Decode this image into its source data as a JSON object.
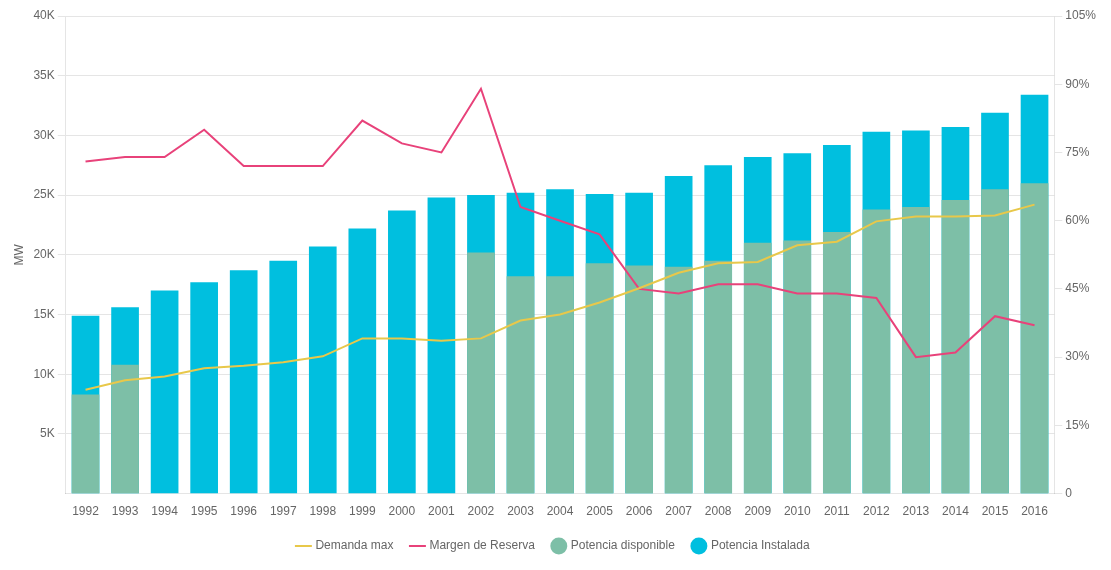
{
  "chart_data": {
    "type": "bar",
    "categories": [
      1992,
      1993,
      1994,
      1995,
      1996,
      1997,
      1998,
      1999,
      2000,
      2001,
      2002,
      2003,
      2004,
      2005,
      2006,
      2007,
      2008,
      2009,
      2010,
      2011,
      2012,
      2013,
      2014,
      2015,
      2016
    ],
    "series": [
      {
        "name": "Potencia Instalada",
        "type": "bar",
        "color": "#00BFDF",
        "marker": "circle",
        "values": [
          14900,
          15600,
          17000,
          17700,
          18700,
          19500,
          20700,
          22200,
          23700,
          24800,
          25000,
          25200,
          25500,
          25100,
          25200,
          26600,
          27500,
          28200,
          28500,
          29200,
          30300,
          30400,
          30700,
          31900,
          33400
        ]
      },
      {
        "name": "Potencia disponible",
        "type": "bar",
        "color": "#7DBFA7",
        "marker": "circle",
        "values": [
          8300,
          10800,
          null,
          null,
          null,
          null,
          null,
          null,
          null,
          null,
          20200,
          18200,
          18200,
          19300,
          19100,
          19000,
          19500,
          21000,
          21200,
          21900,
          23800,
          24000,
          24600,
          25500,
          26000
        ]
      },
      {
        "name": "Demanda max",
        "type": "line",
        "color": "#E8C84A",
        "line_style": "solid",
        "values": [
          8700,
          9500,
          9800,
          10500,
          10700,
          11000,
          11500,
          13000,
          13000,
          12800,
          13000,
          14500,
          15000,
          16000,
          17200,
          18500,
          19300,
          19400,
          20800,
          21100,
          22800,
          23200,
          23200,
          23300,
          24200
        ]
      },
      {
        "name": "Margen de Reserva",
        "type": "line",
        "color": "#E8427A",
        "line_style": "solid",
        "axis": "y2",
        "values": [
          73,
          74,
          74,
          80,
          72,
          72,
          72,
          82,
          77,
          75,
          89,
          63,
          60,
          57,
          45,
          44,
          46,
          46,
          44,
          44,
          43,
          30,
          31,
          39,
          37
        ]
      }
    ],
    "ylabel": "MW",
    "ylim": [
      0,
      40000
    ],
    "yticks": [
      {
        "value": 5000,
        "label": "5K"
      },
      {
        "value": 10000,
        "label": "10K"
      },
      {
        "value": 15000,
        "label": "15K"
      },
      {
        "value": 20000,
        "label": "20K"
      },
      {
        "value": 25000,
        "label": "25K"
      },
      {
        "value": 30000,
        "label": "30K"
      },
      {
        "value": 35000,
        "label": "35K"
      },
      {
        "value": 40000,
        "label": "40K"
      }
    ],
    "y2lim": [
      0,
      105
    ],
    "y2ticks": [
      0,
      {
        "value": 15,
        "label": "15%"
      },
      {
        "value": 30,
        "label": "30%"
      },
      {
        "value": 45,
        "label": "45%"
      },
      {
        "value": 60,
        "label": "60%"
      },
      {
        "value": 75,
        "label": "75%"
      },
      {
        "value": 90,
        "label": "90%"
      },
      {
        "value": 105,
        "label": "105%"
      }
    ],
    "grid": true,
    "legend": "bottom"
  }
}
